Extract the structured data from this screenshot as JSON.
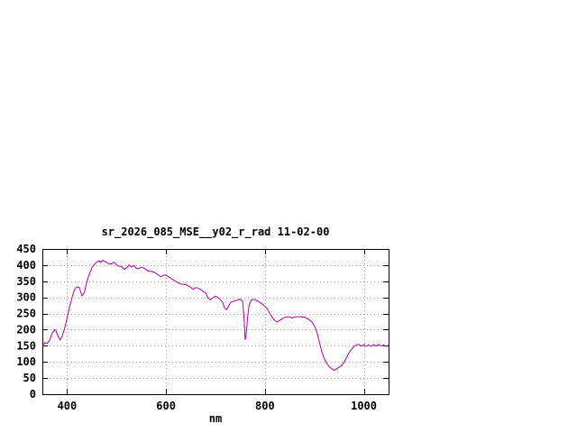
{
  "window": {
    "background_color": "#ffffff"
  },
  "chart": {
    "title": "sr_2026_085_MSE__y02_r_rad 11-02-00",
    "x_axis_label": "nm",
    "line_color": "#aa00aa",
    "grid_color": "#9a9a9a",
    "axis_color": "#000000"
  },
  "chart_data": {
    "type": "line",
    "title": "sr_2026_085_MSE__y02_r_rad 11-02-00",
    "xlabel": "nm",
    "ylabel": "",
    "xlim": [
      350,
      1050
    ],
    "ylim": [
      0,
      450
    ],
    "x_ticks": [
      400,
      600,
      800,
      1000
    ],
    "y_ticks": [
      0,
      50,
      100,
      150,
      200,
      250,
      300,
      350,
      400,
      450
    ],
    "grid": true,
    "legend_position": "none",
    "series": [
      {
        "name": "sr_2026_085_MSE__y02_r_rad 11-02-00",
        "color": "#aa00aa",
        "x": [
          350,
          355,
          360,
          365,
          370,
          375,
          378,
          382,
          386,
          390,
          395,
          400,
          405,
          410,
          415,
          420,
          425,
          430,
          435,
          440,
          445,
          450,
          455,
          460,
          465,
          468,
          472,
          476,
          480,
          485,
          490,
          495,
          500,
          505,
          510,
          515,
          520,
          525,
          530,
          535,
          540,
          545,
          550,
          555,
          560,
          565,
          570,
          575,
          580,
          585,
          590,
          595,
          600,
          605,
          610,
          615,
          620,
          625,
          630,
          635,
          640,
          645,
          650,
          655,
          660,
          665,
          670,
          675,
          680,
          685,
          690,
          695,
          700,
          705,
          710,
          715,
          718,
          722,
          726,
          730,
          735,
          740,
          745,
          750,
          755,
          758,
          760,
          762,
          765,
          768,
          772,
          776,
          780,
          785,
          790,
          795,
          800,
          805,
          810,
          815,
          820,
          825,
          830,
          835,
          840,
          845,
          850,
          855,
          860,
          865,
          870,
          875,
          880,
          885,
          890,
          895,
          900,
          905,
          910,
          915,
          920,
          925,
          930,
          935,
          940,
          945,
          950,
          955,
          960,
          965,
          970,
          975,
          980,
          985,
          990,
          995,
          1000,
          1005,
          1010,
          1015,
          1020,
          1025,
          1030,
          1035,
          1040,
          1045,
          1050
        ],
        "y": [
          148,
          160,
          158,
          168,
          190,
          200,
          195,
          178,
          168,
          178,
          205,
          235,
          270,
          300,
          325,
          333,
          330,
          305,
          315,
          350,
          372,
          392,
          402,
          410,
          413,
          408,
          415,
          412,
          408,
          403,
          404,
          409,
          401,
          396,
          396,
          387,
          391,
          400,
          394,
          399,
          390,
          389,
          394,
          391,
          386,
          381,
          381,
          379,
          374,
          369,
          364,
          369,
          369,
          364,
          359,
          354,
          349,
          345,
          341,
          341,
          340,
          336,
          331,
          325,
          330,
          329,
          324,
          319,
          314,
          298,
          293,
          299,
          304,
          299,
          293,
          283,
          268,
          262,
          272,
          283,
          288,
          289,
          293,
          294,
          288,
          230,
          168,
          185,
          240,
          275,
          291,
          294,
          293,
          289,
          284,
          279,
          272,
          264,
          250,
          238,
          228,
          224,
          229,
          234,
          238,
          239,
          240,
          236,
          239,
          240,
          240,
          239,
          239,
          235,
          230,
          224,
          212,
          192,
          162,
          132,
          110,
          95,
          85,
          79,
          74,
          79,
          84,
          89,
          99,
          113,
          128,
          139,
          148,
          153,
          154,
          149,
          154,
          148,
          153,
          148,
          154,
          149,
          154,
          149,
          153,
          148,
          152
        ]
      }
    ]
  }
}
